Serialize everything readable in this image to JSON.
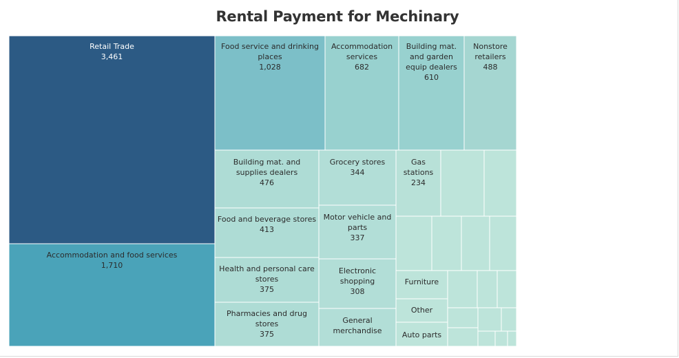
{
  "chart_data": {
    "type": "treemap",
    "title": "Rental Payment for Mechinary",
    "colors": {
      "dark": "#2c5a84",
      "mid": "#4aa3b9",
      "light_teal": "#7cbfc8",
      "pale_teal": "#98d1cf",
      "paler": "#aedcd5",
      "palest": "#bde4da"
    },
    "items": [
      {
        "name": "Retail Trade",
        "value": 3461,
        "value_label": "3,461",
        "color": "#2c5a84"
      },
      {
        "name": "Accommodation and food services",
        "value": 1710,
        "value_label": "1,710",
        "color": "#4aa3b9"
      },
      {
        "name": "Food service and drinking places",
        "value": 1028,
        "value_label": "1,028",
        "color": "#7cbfc8"
      },
      {
        "name": "Accommodation services",
        "value": 682,
        "value_label": "682",
        "color": "#98d1cf"
      },
      {
        "name": "Building mat. and garden equip dealers",
        "value": 610,
        "value_label": "610",
        "color": "#98d1cf"
      },
      {
        "name": "Nonstore retailers",
        "value": 488,
        "value_label": "488",
        "color": "#a5d6d1"
      },
      {
        "name": "Building mat. and supplies dealers",
        "value": 476,
        "value_label": "476",
        "color": "#aedcd5"
      },
      {
        "name": "Food and beverage stores",
        "value": 413,
        "value_label": "413",
        "color": "#aedcd5"
      },
      {
        "name": "Health and personal care stores",
        "value": 375,
        "value_label": "375",
        "color": "#aedcd5"
      },
      {
        "name": "Pharmacies and drug stores",
        "value": 375,
        "value_label": "375",
        "color": "#aedcd5"
      },
      {
        "name": "Grocery stores",
        "value": 344,
        "value_label": "344",
        "color": "#b2ded7"
      },
      {
        "name": "Motor vehicle and parts",
        "value": 337,
        "value_label": "337",
        "color": "#b2ded7"
      },
      {
        "name": "Electronic shopping",
        "value": 308,
        "value_label": "308",
        "color": "#b2ded7"
      },
      {
        "name": "General merchandise",
        "value": null,
        "value_label": "",
        "color": "#b2ded7"
      },
      {
        "name": "Gas stations",
        "value": 234,
        "value_label": "234",
        "color": "#b8e1d8"
      },
      {
        "name": "Furniture",
        "value": null,
        "value_label": "",
        "color": "#bde4da"
      },
      {
        "name": "Other",
        "value": null,
        "value_label": "",
        "color": "#bde4da"
      },
      {
        "name": "Auto parts",
        "value": null,
        "value_label": "",
        "color": "#bde4da"
      }
    ],
    "unlabeled_small_cells": 17
  }
}
